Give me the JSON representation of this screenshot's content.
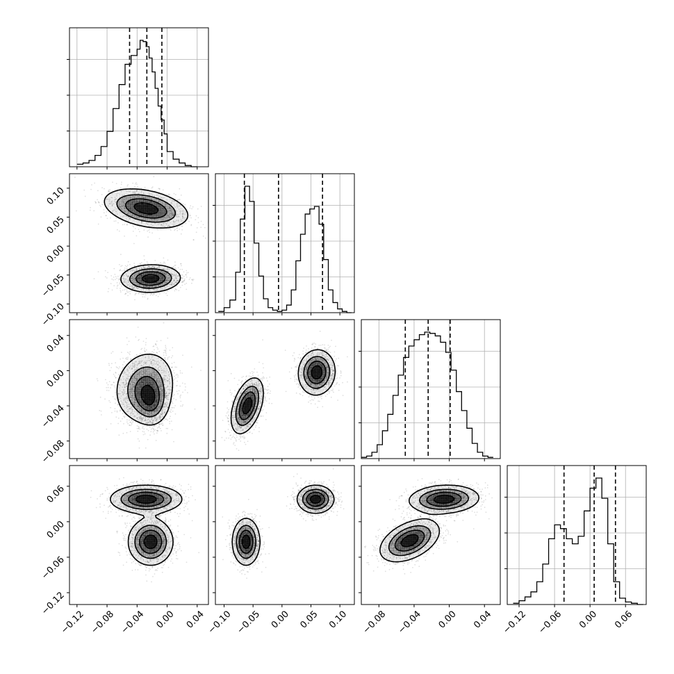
{
  "chart_data": {
    "type": "corner",
    "title": "",
    "grid": true,
    "parameters": [
      {
        "name": "",
        "range": [
          -0.13,
          0.055
        ],
        "ticks": [
          -0.12,
          -0.08,
          -0.04,
          0.0,
          0.04
        ],
        "tick_labels": [
          "−0.12",
          "−0.08",
          "−0.04",
          "0.00",
          "0.04"
        ],
        "quantiles": [
          -0.05,
          -0.027,
          -0.007
        ],
        "histogram": {
          "bin_edges": [
            -0.12,
            -0.112,
            -0.104,
            -0.096,
            -0.088,
            -0.08,
            -0.072,
            -0.064,
            -0.056,
            -0.048,
            -0.04,
            -0.036,
            -0.032,
            -0.028,
            -0.024,
            -0.02,
            -0.016,
            -0.012,
            -0.008,
            -0.004,
            0.0,
            0.008,
            0.016,
            0.024,
            0.032,
            0.04
          ],
          "counts": [
            0.02,
            0.03,
            0.05,
            0.09,
            0.16,
            0.28,
            0.46,
            0.65,
            0.81,
            0.88,
            0.93,
            1.0,
            0.99,
            0.95,
            0.86,
            0.75,
            0.62,
            0.48,
            0.37,
            0.26,
            0.12,
            0.06,
            0.03,
            0.01,
            0.0
          ]
        }
      },
      {
        "name": "",
        "range": [
          -0.115,
          0.125
        ],
        "ticks": [
          -0.1,
          -0.05,
          0.0,
          0.05,
          0.1
        ],
        "tick_labels": [
          "−0.10",
          "−0.05",
          "0.00",
          "0.05",
          "0.10"
        ],
        "quantiles": [
          -0.065,
          -0.006,
          0.07
        ],
        "histogram": {
          "bin_edges": [
            -0.11,
            -0.1,
            -0.09,
            -0.08,
            -0.072,
            -0.064,
            -0.056,
            -0.048,
            -0.04,
            -0.032,
            -0.024,
            -0.016,
            -0.008,
            0.0,
            0.008,
            0.016,
            0.024,
            0.032,
            0.04,
            0.048,
            0.056,
            0.064,
            0.072,
            0.08,
            0.088,
            0.096,
            0.104,
            0.112,
            0.12
          ],
          "counts": [
            0.01,
            0.04,
            0.1,
            0.32,
            0.74,
            1.0,
            0.88,
            0.55,
            0.29,
            0.11,
            0.04,
            0.02,
            0.01,
            0.02,
            0.06,
            0.18,
            0.41,
            0.62,
            0.78,
            0.82,
            0.84,
            0.7,
            0.42,
            0.18,
            0.08,
            0.03,
            0.01,
            0.0
          ]
        }
      },
      {
        "name": "",
        "range": [
          -0.1,
          0.058
        ],
        "ticks": [
          -0.08,
          -0.04,
          0.0,
          0.04
        ],
        "tick_labels": [
          "−0.08",
          "−0.04",
          "0.00",
          "0.04"
        ],
        "quantiles": [
          -0.05,
          -0.024,
          0.001
        ],
        "histogram": {
          "bin_edges": [
            -0.1,
            -0.094,
            -0.088,
            -0.082,
            -0.076,
            -0.07,
            -0.064,
            -0.058,
            -0.052,
            -0.046,
            -0.04,
            -0.034,
            -0.028,
            -0.022,
            -0.016,
            -0.01,
            -0.004,
            0.002,
            0.008,
            0.014,
            0.02,
            0.026,
            0.032,
            0.038,
            0.044,
            0.05
          ],
          "counts": [
            0.01,
            0.02,
            0.05,
            0.11,
            0.22,
            0.35,
            0.5,
            0.66,
            0.8,
            0.89,
            0.94,
            0.98,
            1.0,
            0.99,
            0.97,
            0.92,
            0.84,
            0.7,
            0.53,
            0.38,
            0.24,
            0.12,
            0.05,
            0.02,
            0.01
          ]
        }
      },
      {
        "name": "",
        "range": [
          -0.14,
          0.095
        ],
        "ticks": [
          -0.12,
          -0.06,
          0.0,
          0.06
        ],
        "tick_labels": [
          "−0.12",
          "−0.06",
          "0.00",
          "0.06"
        ],
        "quantiles": [
          -0.044,
          0.007,
          0.043
        ],
        "histogram": {
          "bin_edges": [
            -0.13,
            -0.12,
            -0.11,
            -0.1,
            -0.09,
            -0.08,
            -0.07,
            -0.06,
            -0.05,
            -0.04,
            -0.03,
            -0.02,
            -0.01,
            0.0,
            0.01,
            0.02,
            0.03,
            0.04,
            0.05,
            0.06,
            0.07,
            0.08,
            0.09
          ],
          "counts": [
            0.01,
            0.03,
            0.06,
            0.1,
            0.18,
            0.32,
            0.52,
            0.63,
            0.6,
            0.52,
            0.48,
            0.54,
            0.74,
            0.92,
            1.0,
            0.84,
            0.48,
            0.18,
            0.05,
            0.02,
            0.01,
            0.0
          ]
        }
      }
    ],
    "pair_density": [
      {
        "row": 1,
        "col": 0,
        "modes": [
          {
            "x": -0.028,
            "y": 0.065,
            "sx": 0.028,
            "sy": 0.017,
            "rho": -0.35,
            "w": 0.5
          },
          {
            "x": -0.022,
            "y": -0.056,
            "sx": 0.02,
            "sy": 0.012,
            "rho": 0.05,
            "w": 0.5
          }
        ]
      },
      {
        "row": 2,
        "col": 0,
        "modes": [
          {
            "x": -0.03,
            "y": -0.018,
            "sx": 0.021,
            "sy": 0.021,
            "rho": 0.15,
            "w": 0.55
          },
          {
            "x": -0.022,
            "y": -0.035,
            "sx": 0.012,
            "sy": 0.014,
            "rho": -0.1,
            "w": 0.45
          }
        ]
      },
      {
        "row": 2,
        "col": 1,
        "modes": [
          {
            "x": -0.06,
            "y": -0.04,
            "sx": 0.014,
            "sy": 0.016,
            "rho": 0.45,
            "w": 0.5
          },
          {
            "x": 0.06,
            "y": -0.002,
            "sx": 0.016,
            "sy": 0.013,
            "rho": 0.05,
            "w": 0.5
          }
        ]
      },
      {
        "row": 3,
        "col": 0,
        "modes": [
          {
            "x": -0.028,
            "y": 0.038,
            "sx": 0.024,
            "sy": 0.012,
            "rho": 0.0,
            "w": 0.5
          },
          {
            "x": -0.022,
            "y": -0.034,
            "sx": 0.015,
            "sy": 0.02,
            "rho": 0.0,
            "w": 0.5
          }
        ]
      },
      {
        "row": 3,
        "col": 1,
        "modes": [
          {
            "x": -0.062,
            "y": -0.034,
            "sx": 0.012,
            "sy": 0.02,
            "rho": 0.0,
            "w": 0.5
          },
          {
            "x": 0.058,
            "y": 0.038,
            "sx": 0.016,
            "sy": 0.012,
            "rho": 0.0,
            "w": 0.5
          }
        ]
      },
      {
        "row": 3,
        "col": 2,
        "modes": [
          {
            "x": -0.045,
            "y": -0.032,
            "sx": 0.017,
            "sy": 0.018,
            "rho": 0.45,
            "w": 0.5
          },
          {
            "x": -0.006,
            "y": 0.038,
            "sx": 0.02,
            "sy": 0.012,
            "rho": 0.1,
            "w": 0.5
          }
        ]
      }
    ]
  }
}
